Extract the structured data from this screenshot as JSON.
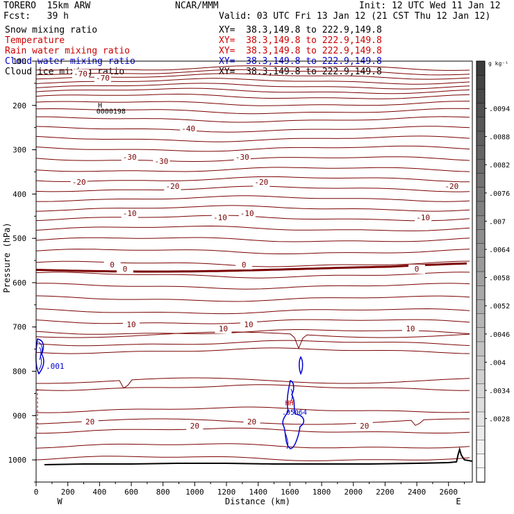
{
  "header": {
    "model": "TORERO  15km ARW",
    "forecast": "Fcst:   39 h",
    "center": "NCAR/MMM",
    "init": "Init: 12 UTC Wed 11 Jan 12",
    "valid": "Valid: 03 UTC Fri 13 Jan 12 (21 CST Thu 12 Jan 12)"
  },
  "fields": [
    {
      "name": "Snow mixing ratio",
      "xy": "XY=  38.3,149.8 to 222.9,149.8",
      "color": "#000000"
    },
    {
      "name": "Temperature",
      "xy": "XY=  38.3,149.8 to 222.9,149.8",
      "color": "#cc0000"
    },
    {
      "name": "Rain water mixing ratio",
      "xy": "XY=  38.3,149.8 to 222.9,149.8",
      "color": "#cc0000"
    },
    {
      "name": "Cloud water mixing ratio",
      "xy": "XY=  38.3,149.8 to 222.9,149.8",
      "color": "#0000cc"
    },
    {
      "name": "Cloud ice mixing ratio",
      "xy": "XY=  38.3,149.8 to 222.9,149.8",
      "color": "#000000"
    }
  ],
  "chart_data": {
    "type": "contour",
    "xlabel": "Distance (km)",
    "ylabel": "Pressure (hPa)",
    "xlim": [
      0,
      2750
    ],
    "ylim": [
      1050,
      100
    ],
    "x_ticks": [
      "0",
      "200",
      "400",
      "600",
      "800",
      "1000",
      "1200",
      "1400",
      "1600",
      "1800",
      "2000",
      "2200",
      "2400",
      "2600"
    ],
    "y_ticks": [
      "100",
      "200",
      "300",
      "400",
      "500",
      "600",
      "700",
      "800",
      "900",
      "1000"
    ],
    "x_end_labels": {
      "left": "W",
      "right": "E"
    },
    "colorbar": {
      "unit": "g kg⁻¹",
      "labels": [
        ".0094",
        ".0088",
        ".0082",
        ".0076",
        ".007",
        ".0064",
        ".0058",
        ".0052",
        ".0046",
        ".004",
        ".0034",
        ".0028"
      ]
    },
    "temperature_isotherms": [
      {
        "value": -70,
        "labels": [
          {
            "x": 280,
            "text": "-70"
          },
          {
            "x": 420,
            "text": "-70"
          }
        ]
      },
      {
        "value": -40,
        "labels": [
          {
            "x": 960,
            "text": "-40"
          }
        ]
      },
      {
        "value": -30,
        "labels": [
          {
            "x": 590,
            "text": "-30"
          },
          {
            "x": 790,
            "text": "-30"
          },
          {
            "x": 1300,
            "text": "-30"
          }
        ]
      },
      {
        "value": -20,
        "labels": [
          {
            "x": 270,
            "text": "-20"
          },
          {
            "x": 860,
            "text": "-20"
          },
          {
            "x": 1420,
            "text": "-20"
          },
          {
            "x": 2620,
            "text": "-20"
          }
        ]
      },
      {
        "value": -10,
        "labels": [
          {
            "x": 590,
            "text": "-10"
          },
          {
            "x": 1160,
            "text": "-10"
          },
          {
            "x": 1330,
            "text": "-10"
          },
          {
            "x": 2440,
            "text": "-10"
          }
        ]
      },
      {
        "value": 0,
        "labels": [
          {
            "x": 480,
            "text": "0"
          },
          {
            "x": 560,
            "text": "0"
          },
          {
            "x": 1310,
            "text": "0"
          },
          {
            "x": 2400,
            "text": "0"
          }
        ]
      },
      {
        "value": 10,
        "labels": [
          {
            "x": 600,
            "text": "10"
          },
          {
            "x": 1180,
            "text": "10"
          },
          {
            "x": 1340,
            "text": "10"
          },
          {
            "x": 2360,
            "text": "10"
          }
        ]
      },
      {
        "value": 20,
        "labels": [
          {
            "x": 340,
            "text": "20"
          },
          {
            "x": 1000,
            "text": "20"
          },
          {
            "x": 1360,
            "text": "20"
          },
          {
            "x": 2070,
            "text": "20"
          }
        ]
      }
    ],
    "cloud_water_label": ".001",
    "annotations": [
      {
        "text": "H",
        "x": 390,
        "p": 205,
        "color": "#000000"
      },
      {
        "text": "0000198",
        "x": 380,
        "p": 218,
        "color": "#000000"
      },
      {
        "text": "HH",
        "x": 1570,
        "p": 877,
        "color": "#cc0000"
      },
      {
        "text": ".05064",
        "x": 1550,
        "p": 898,
        "color": "#0000cc"
      }
    ]
  }
}
